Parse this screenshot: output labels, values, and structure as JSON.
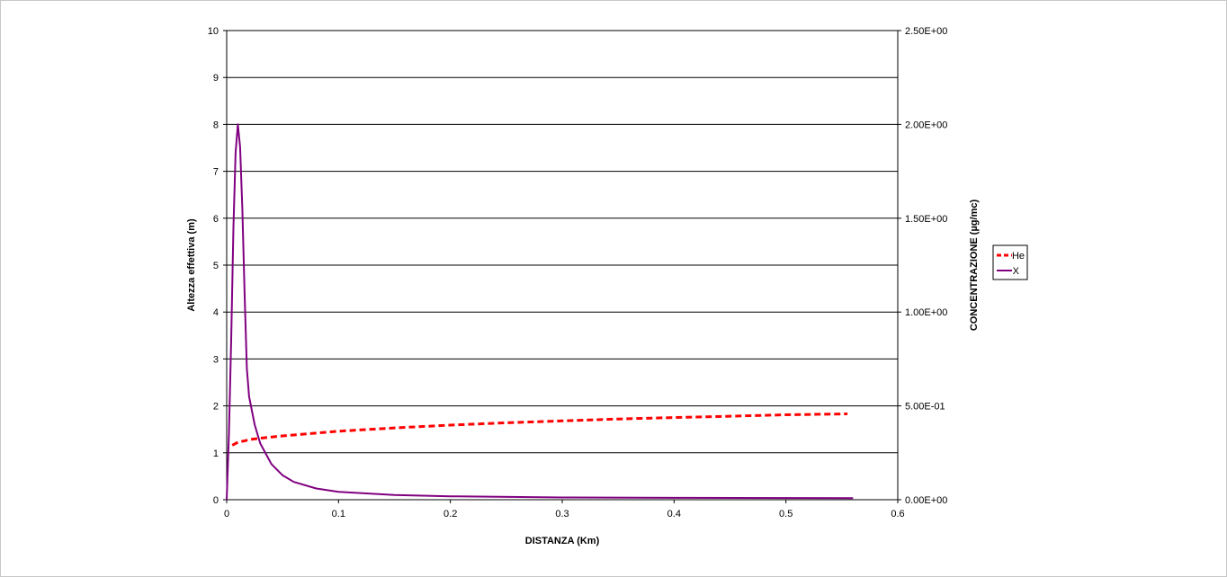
{
  "chart_data": {
    "type": "line",
    "xlabel": "DISTANZA (Km)",
    "ylabel": "Altezza effettiva (m)",
    "y2label": "CONCENTRAZIONE (µg/mc)",
    "xlim": [
      0,
      0.6
    ],
    "ylim": [
      0,
      10
    ],
    "y2lim": [
      0,
      2.5
    ],
    "xticks": [
      "0",
      "0.1",
      "0.2",
      "0.3",
      "0.4",
      "0.5",
      "0.6"
    ],
    "yticks": [
      "0",
      "1",
      "2",
      "3",
      "4",
      "5",
      "6",
      "7",
      "8",
      "9",
      "10"
    ],
    "y2ticks": [
      "0.00E+00",
      "5.00E-01",
      "1.00E+00",
      "1.50E+00",
      "2.00E+00",
      "2.50E+00"
    ],
    "grid": "horizontal",
    "legend": "right",
    "series": [
      {
        "name": "He",
        "axis": "left",
        "color": "#ff0000",
        "style": "dashed",
        "points": [
          [
            0.005,
            1.16
          ],
          [
            0.008,
            1.2
          ],
          [
            0.01,
            1.22
          ],
          [
            0.015,
            1.25
          ],
          [
            0.02,
            1.28
          ],
          [
            0.03,
            1.31
          ],
          [
            0.05,
            1.36
          ],
          [
            0.075,
            1.41
          ],
          [
            0.1,
            1.46
          ],
          [
            0.15,
            1.53
          ],
          [
            0.2,
            1.59
          ],
          [
            0.25,
            1.64
          ],
          [
            0.3,
            1.68
          ],
          [
            0.35,
            1.72
          ],
          [
            0.4,
            1.75
          ],
          [
            0.45,
            1.78
          ],
          [
            0.5,
            1.81
          ],
          [
            0.555,
            1.83
          ]
        ]
      },
      {
        "name": "X",
        "axis": "right",
        "color": "#800080",
        "style": "solid",
        "points": [
          [
            0.0,
            0.0
          ],
          [
            0.002,
            0.35
          ],
          [
            0.004,
            0.85
          ],
          [
            0.006,
            1.45
          ],
          [
            0.008,
            1.85
          ],
          [
            0.01,
            2.0
          ],
          [
            0.012,
            1.88
          ],
          [
            0.014,
            1.55
          ],
          [
            0.016,
            1.1
          ],
          [
            0.018,
            0.7
          ],
          [
            0.02,
            0.55
          ],
          [
            0.025,
            0.4
          ],
          [
            0.03,
            0.3
          ],
          [
            0.04,
            0.19
          ],
          [
            0.05,
            0.13
          ],
          [
            0.06,
            0.095
          ],
          [
            0.08,
            0.06
          ],
          [
            0.1,
            0.042
          ],
          [
            0.15,
            0.025
          ],
          [
            0.2,
            0.018
          ],
          [
            0.3,
            0.012
          ],
          [
            0.4,
            0.01
          ],
          [
            0.5,
            0.009
          ],
          [
            0.56,
            0.008
          ]
        ]
      }
    ]
  }
}
